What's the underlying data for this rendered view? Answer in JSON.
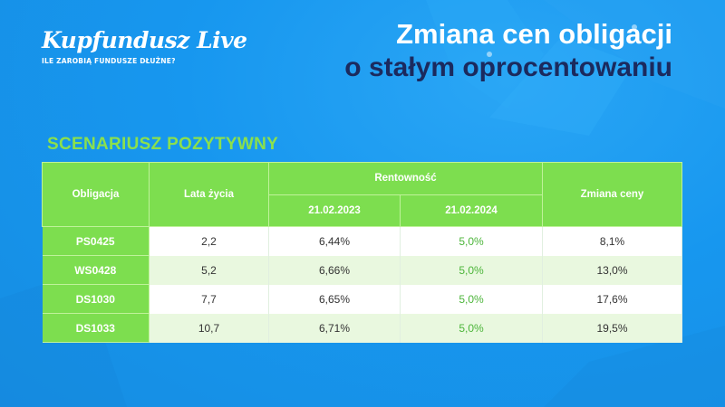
{
  "logo": {
    "name": "Kupfundusz Live",
    "tagline": "ILE ZAROBIĄ FUNDUSZE DŁUŻNE?"
  },
  "title": {
    "line1": "Zmiana cen obligacji",
    "line2": "o stałym oprocentowaniu"
  },
  "scenario": "SCENARIUSZ POZYTYWNY",
  "table": {
    "headers": {
      "bond": "Obligacja",
      "years": "Lata  życia",
      "yield": "Rentowność",
      "date1": "21.02.2023",
      "date2": "21.02.2024",
      "price_change": "Zmiana ceny"
    },
    "rows": [
      {
        "bond": "PS0425",
        "years": "2,2",
        "y2023": "6,44%",
        "y2024": "5,0%",
        "change": "8,1%"
      },
      {
        "bond": "WS0428",
        "years": "5,2",
        "y2023": "6,66%",
        "y2024": "5,0%",
        "change": "13,0%"
      },
      {
        "bond": "DS1030",
        "years": "7,7",
        "y2023": "6,65%",
        "y2024": "5,0%",
        "change": "17,6%"
      },
      {
        "bond": "DS1033",
        "years": "10,7",
        "y2023": "6,71%",
        "y2024": "5,0%",
        "change": "19,5%"
      }
    ]
  },
  "colors": {
    "background": "#1a9af2",
    "header_green": "#7dde4f",
    "title_dark": "#1b2a5e",
    "accent_green_text": "#4cb53a"
  }
}
